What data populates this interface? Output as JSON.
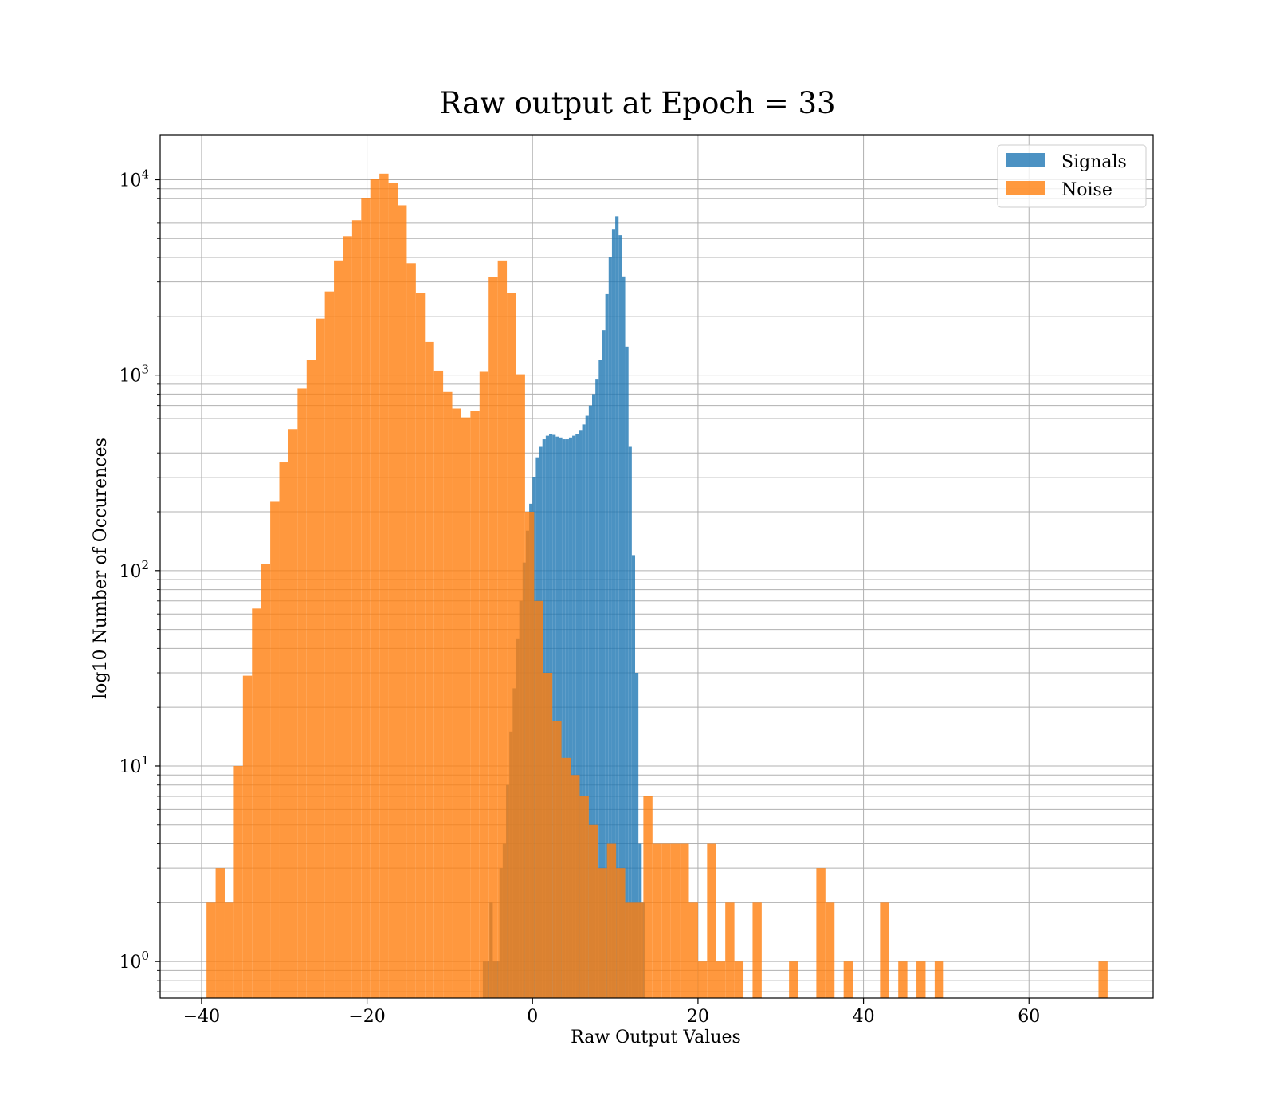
{
  "chart_data": {
    "type": "bar",
    "title": "Raw output at Epoch = 33",
    "xlabel": "Raw Output Values",
    "ylabel": "log10 Number of Occurences",
    "xlim": [
      -45,
      75
    ],
    "ylim": [
      0.65,
      17000
    ],
    "yscale": "log",
    "grid": true,
    "legend_position": "top-right",
    "x_ticks": [
      -40,
      -20,
      0,
      20,
      40,
      60
    ],
    "x_tick_labels": [
      "−40",
      "−20",
      "0",
      "20",
      "40",
      "60"
    ],
    "y_ticks": [
      1,
      10,
      100,
      1000,
      10000
    ],
    "y_tick_labels": [
      {
        "base": "10",
        "exp": "0"
      },
      {
        "base": "10",
        "exp": "1"
      },
      {
        "base": "10",
        "exp": "2"
      },
      {
        "base": "10",
        "exp": "3"
      },
      {
        "base": "10",
        "exp": "4"
      }
    ],
    "series": [
      {
        "name": "Signals",
        "color": "#1f77b4",
        "opacity": 0.8,
        "bin_width": 0.4,
        "x": [
          -5.8,
          -5.4,
          -5.0,
          -4.6,
          -4.2,
          -3.8,
          -3.4,
          -3.0,
          -2.6,
          -2.2,
          -1.8,
          -1.4,
          -1.0,
          -0.6,
          -0.2,
          0.2,
          0.6,
          1.0,
          1.4,
          1.8,
          2.2,
          2.6,
          3.0,
          3.4,
          3.8,
          4.2,
          4.6,
          5.0,
          5.4,
          5.8,
          6.2,
          6.6,
          7.0,
          7.4,
          7.8,
          8.2,
          8.6,
          9.0,
          9.4,
          9.8,
          10.2,
          10.6,
          11.0,
          11.4,
          11.8,
          12.2,
          12.6,
          13.0,
          13.4
        ],
        "values": [
          1,
          1,
          2,
          1,
          1,
          3,
          4,
          8,
          15,
          25,
          45,
          70,
          110,
          160,
          220,
          300,
          380,
          430,
          470,
          490,
          500,
          495,
          485,
          480,
          470,
          470,
          480,
          490,
          500,
          520,
          560,
          620,
          700,
          800,
          950,
          1200,
          1700,
          2600,
          4000,
          5600,
          6500,
          5200,
          3200,
          1400,
          430,
          120,
          30,
          4,
          2
        ]
      },
      {
        "name": "Noise",
        "color": "#ff7f0e",
        "opacity": 0.8,
        "bin_width": 1.1,
        "x": [
          -38.85,
          -37.75,
          -36.65,
          -35.55,
          -34.45,
          -33.35,
          -32.25,
          -31.15,
          -30.05,
          -28.95,
          -27.85,
          -26.75,
          -25.65,
          -24.55,
          -23.45,
          -22.35,
          -21.25,
          -20.15,
          -19.05,
          -17.95,
          -16.85,
          -15.75,
          -14.65,
          -13.55,
          -12.45,
          -11.35,
          -10.25,
          -9.15,
          -8.05,
          -6.95,
          -5.85,
          -4.75,
          -3.65,
          -2.55,
          -1.45,
          -0.35,
          0.75,
          1.85,
          2.95,
          4.05,
          5.15,
          6.25,
          7.35,
          8.45,
          9.55,
          10.65,
          11.75,
          12.85,
          13.95,
          15.05,
          16.15,
          17.25,
          18.35,
          19.45,
          20.55,
          21.65,
          22.75,
          23.85,
          24.95,
          26.05,
          27.15,
          28.25,
          29.35,
          30.45,
          31.55,
          32.65,
          33.75,
          34.85,
          35.95,
          37.05,
          38.15,
          39.25,
          40.35,
          41.45,
          42.55,
          43.65,
          44.75,
          45.85,
          46.95,
          48.05,
          49.15,
          50.25,
          51.35,
          52.45,
          53.55,
          54.65,
          55.75,
          56.85,
          57.95,
          59.05,
          60.15,
          61.25,
          62.35,
          63.45,
          64.55,
          65.65,
          66.75,
          67.85,
          68.95
        ],
        "values": [
          2,
          3,
          2,
          10,
          29,
          64,
          108,
          225,
          358,
          530,
          854,
          1198,
          1948,
          2681,
          3863,
          5142,
          6209,
          8095,
          10069,
          10747,
          9658,
          7407,
          3737,
          2641,
          1480,
          1055,
          820,
          675,
          608,
          656,
          1040,
          3170,
          3860,
          2640,
          1010,
          200,
          70,
          30,
          17,
          11,
          9,
          7,
          5,
          3,
          4,
          3,
          2,
          2,
          7,
          4,
          4,
          4,
          4,
          2,
          1,
          4,
          1,
          2,
          1,
          0,
          2,
          0,
          0,
          0,
          1,
          0,
          0,
          3,
          2,
          0,
          1,
          0,
          0,
          0,
          2,
          0,
          1,
          0,
          1,
          0,
          1,
          0,
          0,
          0,
          0,
          0,
          0,
          0,
          0,
          0,
          0,
          0,
          0,
          0,
          0,
          0,
          0,
          0,
          1
        ]
      }
    ]
  }
}
